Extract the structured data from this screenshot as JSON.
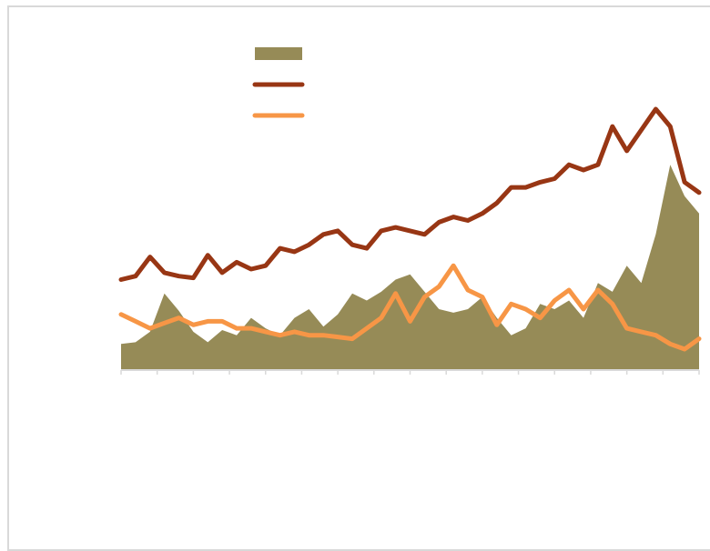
{
  "chart_data": {
    "type": "area",
    "title": "",
    "xlabel": "",
    "ylabel": "",
    "grid": false,
    "legend": {
      "placement": "top-left",
      "entries": [
        "",
        "",
        ""
      ]
    },
    "x_tick_count": 17,
    "x": [
      0,
      4,
      8,
      12,
      16,
      20,
      24,
      28,
      32,
      36,
      40,
      44,
      48,
      52,
      56,
      60,
      64,
      68,
      72,
      76,
      80,
      84,
      88,
      92,
      96,
      100,
      104,
      108,
      112,
      116,
      120,
      124,
      128,
      132,
      136,
      140,
      144,
      148,
      152,
      156,
      160
    ],
    "series": [
      {
        "kind": "area",
        "color": "#968b57",
        "values": [
          15,
          16,
          22,
          44,
          34,
          22,
          16,
          23,
          20,
          30,
          24,
          20,
          30,
          35,
          25,
          32,
          44,
          40,
          45,
          52,
          55,
          45,
          35,
          33,
          35,
          42,
          30,
          20,
          24,
          38,
          35,
          40,
          30,
          50,
          45,
          60,
          50,
          78,
          118,
          100,
          90
        ]
      },
      {
        "kind": "line",
        "color": "#983614",
        "values": [
          52,
          54,
          65,
          56,
          54,
          53,
          66,
          56,
          62,
          58,
          60,
          70,
          68,
          72,
          78,
          80,
          72,
          70,
          80,
          82,
          80,
          78,
          85,
          88,
          86,
          90,
          96,
          105,
          105,
          108,
          110,
          118,
          115,
          118,
          140,
          126,
          138,
          150,
          140,
          108,
          102
        ]
      },
      {
        "kind": "line",
        "color": "#f79646",
        "values": [
          32,
          28,
          24,
          27,
          30,
          26,
          28,
          28,
          24,
          24,
          22,
          20,
          22,
          20,
          20,
          19,
          18,
          24,
          30,
          44,
          28,
          42,
          48,
          60,
          46,
          42,
          26,
          38,
          35,
          30,
          40,
          46,
          35,
          46,
          38,
          24,
          22,
          20,
          15,
          12,
          18
        ]
      }
    ]
  }
}
